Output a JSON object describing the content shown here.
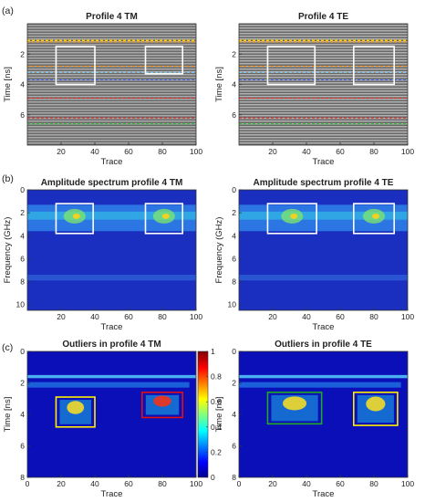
{
  "panel_labels": [
    "(a)",
    "(b)",
    "(c)"
  ],
  "colors": {
    "white_box": "#ffffff",
    "yellow_box": "#ffee00",
    "red_box": "#e01010",
    "green_box": "#22aa22",
    "dashed_yellow": "#ffd200",
    "dashed_orange": "#ff8c00",
    "dashed_cyan": "#7fd4ff",
    "dashed_blue": "#4a6cff",
    "dashed_red": "#e81818",
    "dashed_green": "#20c020"
  },
  "chart_data": [
    {
      "type": "heatmap",
      "panel": "(a)",
      "title": "Profile 4 TM",
      "xlabel": "Trace",
      "ylabel": "Time [ns]",
      "xlim": [
        0,
        100
      ],
      "ylim": [
        8,
        0
      ],
      "xticks": [
        20,
        40,
        60,
        80,
        100
      ],
      "yticks": [
        2,
        4,
        6
      ],
      "colormap": "gray",
      "boxes": [
        {
          "color": "white",
          "x": [
            17,
            40
          ],
          "y": [
            1.5,
            4.0
          ]
        },
        {
          "color": "white",
          "x": [
            70,
            92
          ],
          "y": [
            1.5,
            3.3
          ]
        }
      ],
      "horizontal_lines": [
        {
          "color": "yellow",
          "y": 1.1
        },
        {
          "color": "orange",
          "y": 1.2
        },
        {
          "color": "orange",
          "y": 2.8
        },
        {
          "color": "cyan",
          "y": 3.2
        },
        {
          "color": "blue",
          "y": 3.7
        },
        {
          "color": "red",
          "y": 4.9
        },
        {
          "color": "red",
          "y": 6.2
        },
        {
          "color": "green",
          "y": 6.6
        }
      ]
    },
    {
      "type": "heatmap",
      "panel": "(a)",
      "title": "Profile 4 TE",
      "xlabel": "Trace",
      "ylabel": "Time [ns]",
      "xlim": [
        0,
        100
      ],
      "ylim": [
        8,
        0
      ],
      "xticks": [
        20,
        40,
        60,
        80,
        100
      ],
      "yticks": [
        2,
        4,
        6
      ],
      "colormap": "gray",
      "boxes": [
        {
          "color": "white",
          "x": [
            17,
            45
          ],
          "y": [
            1.5,
            4.0
          ]
        },
        {
          "color": "white",
          "x": [
            68,
            92
          ],
          "y": [
            1.5,
            4.0
          ]
        }
      ],
      "horizontal_lines": [
        {
          "color": "yellow",
          "y": 1.1
        },
        {
          "color": "orange",
          "y": 1.2
        },
        {
          "color": "orange",
          "y": 2.8
        },
        {
          "color": "cyan",
          "y": 3.2
        },
        {
          "color": "blue",
          "y": 3.7
        },
        {
          "color": "red",
          "y": 4.9
        },
        {
          "color": "red",
          "y": 6.2
        },
        {
          "color": "green",
          "y": 6.6
        }
      ]
    },
    {
      "type": "heatmap",
      "panel": "(b)",
      "title": "Amplitude spectrum profile 4 TM",
      "xlabel": "Trace",
      "ylabel": "Frequency (GHz)",
      "xlim": [
        0,
        100
      ],
      "ylim": [
        10.5,
        0
      ],
      "xticks": [
        20,
        40,
        60,
        80,
        100
      ],
      "yticks": [
        0,
        2,
        4,
        6,
        8,
        10
      ],
      "colormap": "jet",
      "boxes": [
        {
          "color": "white",
          "x": [
            17,
            39
          ],
          "y": [
            1.2,
            3.8
          ]
        },
        {
          "color": "white",
          "x": [
            70,
            92
          ],
          "y": [
            1.2,
            3.8
          ]
        }
      ]
    },
    {
      "type": "heatmap",
      "panel": "(b)",
      "title": "Amplitude spectrum profile 4 TE",
      "xlabel": "Trace",
      "ylabel": "Frequency (GHz)",
      "xlim": [
        0,
        100
      ],
      "ylim": [
        10.5,
        0
      ],
      "xticks": [
        20,
        40,
        60,
        80,
        100
      ],
      "yticks": [
        0,
        2,
        4,
        6,
        8,
        10
      ],
      "colormap": "jet",
      "boxes": [
        {
          "color": "white",
          "x": [
            17,
            46
          ],
          "y": [
            1.2,
            3.8
          ]
        },
        {
          "color": "white",
          "x": [
            68,
            92
          ],
          "y": [
            1.2,
            3.8
          ]
        }
      ]
    },
    {
      "type": "heatmap",
      "panel": "(c)",
      "title": "Outliers in profile 4 TM",
      "xlabel": "Trace",
      "ylabel": "Time [ns]",
      "xlim": [
        0,
        100
      ],
      "ylim": [
        8,
        0
      ],
      "xticks": [
        0,
        20,
        40,
        60,
        80,
        100
      ],
      "yticks": [
        0,
        2,
        4,
        6,
        8
      ],
      "colormap": "jet",
      "colorbar": {
        "min": 0,
        "max": 1,
        "ticks": [
          "0",
          "0.2",
          "0.4",
          "0.6",
          "0.8",
          "1"
        ]
      },
      "boxes": [
        {
          "color": "yellow",
          "x": [
            17,
            40
          ],
          "y": [
            2.9,
            4.8
          ]
        },
        {
          "color": "red",
          "x": [
            68,
            92
          ],
          "y": [
            2.6,
            4.2
          ]
        }
      ]
    },
    {
      "type": "heatmap",
      "panel": "(c)",
      "title": "Outliers in profile 4 TE",
      "xlabel": "Trace",
      "ylabel": "Time [ns]",
      "xlim": [
        0,
        100
      ],
      "ylim": [
        8,
        0
      ],
      "xticks": [
        0,
        20,
        40,
        60,
        80,
        100
      ],
      "yticks": [
        0,
        2,
        4,
        6,
        8
      ],
      "colormap": "jet",
      "boxes": [
        {
          "color": "green",
          "x": [
            17,
            49
          ],
          "y": [
            2.6,
            4.6
          ]
        },
        {
          "color": "yellow",
          "x": [
            68,
            94
          ],
          "y": [
            2.6,
            4.7
          ]
        }
      ]
    }
  ]
}
